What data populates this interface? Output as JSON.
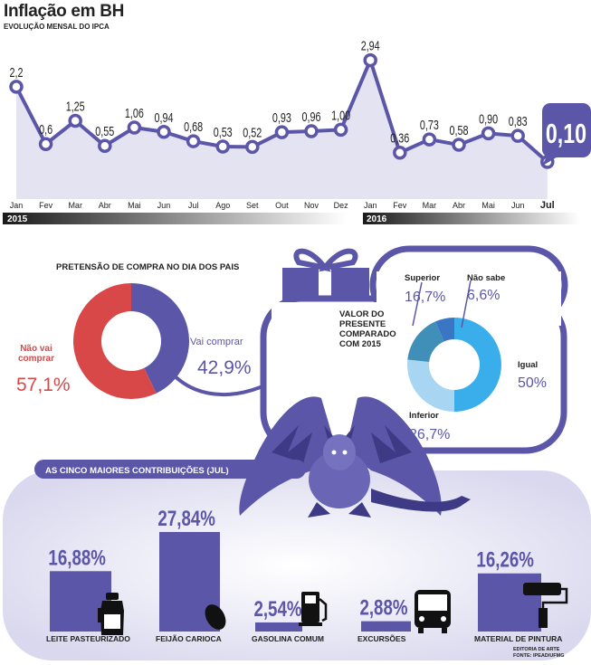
{
  "header": {
    "title": "Inflação em BH",
    "subtitle": "EVOLUÇÃO MENSAL DO IPCA"
  },
  "chart_data": [
    {
      "type": "area",
      "title": "Inflação em BH",
      "subtitle": "EVOLUÇÃO MENSAL DO IPCA",
      "categories": [
        "Jan",
        "Fev",
        "Mar",
        "Abr",
        "Mai",
        "Jun",
        "Jul",
        "Ago",
        "Set",
        "Out",
        "Nov",
        "Dez",
        "Jan",
        "Fev",
        "Mar",
        "Abr",
        "Mai",
        "Jun",
        "Jul"
      ],
      "labels": [
        "2,2",
        "0,6",
        "1,25",
        "0,55",
        "1,06",
        "0,94",
        "0,68",
        "0,53",
        "0,52",
        "0,93",
        "0,96",
        "1,00",
        "2,94",
        "0,36",
        "0,73",
        "0,58",
        "0,90",
        "0,83",
        "0,10"
      ],
      "values": [
        2.2,
        0.6,
        1.25,
        0.55,
        1.06,
        0.94,
        0.68,
        0.53,
        0.52,
        0.93,
        0.96,
        1.0,
        2.94,
        0.36,
        0.73,
        0.58,
        0.9,
        0.83,
        0.1
      ],
      "years": [
        "2015",
        "2016"
      ],
      "line_color": "#5b56a8",
      "fill_color": "#e4e3f2"
    },
    {
      "type": "pie",
      "title": "PRETENSÃO DE COMPRA NO DIA DOS PAIS",
      "labels": [
        "Vai comprar",
        "Não vai comprar"
      ],
      "values": [
        42.9,
        57.1
      ],
      "value_labels": [
        "42,9%",
        "57,1%"
      ],
      "colors": [
        "#5b56a8",
        "#d94848"
      ]
    },
    {
      "type": "pie",
      "title": "VALOR DO PRESENTE COMPARADO COM 2015",
      "labels": [
        "Igual",
        "Inferior",
        "Superior",
        "Não sabe"
      ],
      "values": [
        50,
        26.7,
        16.7,
        6.6
      ],
      "value_labels": [
        "50%",
        "26,7%",
        "16,7%",
        "6,6%"
      ],
      "colors": [
        "#3aaeea",
        "#a8d6f2",
        "#3f8fb8",
        "#3a76c4"
      ]
    },
    {
      "type": "bar",
      "title": "AS CINCO MAIORES CONTRIBUIÇÕES (JUL)",
      "categories": [
        "LEITE PASTEURIZADO",
        "FEIJÃO CARIOCA",
        "GASOLINA COMUM",
        "EXCURSÕES",
        "MATERIAL DE PINTURA"
      ],
      "values": [
        16.88,
        27.84,
        2.54,
        2.88,
        16.26
      ],
      "value_labels": [
        "16,88%",
        "27,84%",
        "2,54%",
        "2,88%",
        "16,26%"
      ],
      "color": "#5b56a8"
    }
  ],
  "icons": [
    "milk-can-icon",
    "bean-icon",
    "gas-pump-icon",
    "bus-icon",
    "paint-roller-icon",
    "gift-icon",
    "dragon-icon"
  ],
  "footer": {
    "credit": "EDITORIA DE ARTE",
    "source": "FONTE: IPEAD/UFMG"
  }
}
